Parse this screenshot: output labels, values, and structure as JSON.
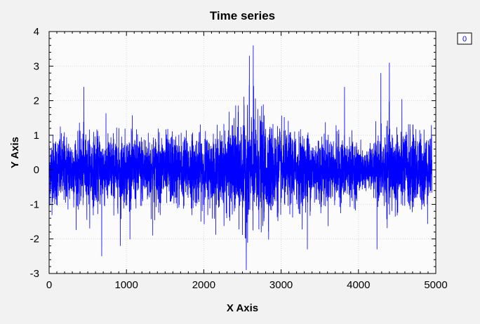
{
  "chart_data": {
    "type": "line",
    "title": "Time series",
    "xlabel": "X Axis",
    "ylabel": "Y Axis",
    "xlim": [
      0,
      5000
    ],
    "ylim": [
      -3,
      4
    ],
    "x_ticks": [
      0,
      1000,
      2000,
      3000,
      4000,
      5000
    ],
    "y_ticks": [
      -3,
      -2,
      -1,
      0,
      1,
      2,
      3,
      4
    ],
    "grid": true,
    "legend": {
      "placement": "top-right",
      "entries": [
        "0"
      ]
    },
    "colors": {
      "series": "#0000ff",
      "background": "#f2f2f2",
      "plot_area": "#fbfbfb",
      "grid": "#d8d8d8"
    },
    "series": [
      {
        "name": "0",
        "x_start": 0,
        "x_end": 4950,
        "n_points": 4950,
        "mean": 0,
        "noise_envelope": [
          {
            "x": 0,
            "sigma": 0.5
          },
          {
            "x": 2200,
            "sigma": 0.5
          },
          {
            "x": 2600,
            "sigma": 0.85
          },
          {
            "x": 3000,
            "sigma": 0.55
          },
          {
            "x": 3900,
            "sigma": 0.45
          },
          {
            "x": 4100,
            "sigma": 0.25
          },
          {
            "x": 4400,
            "sigma": 0.6
          },
          {
            "x": 4950,
            "sigma": 0.5
          }
        ],
        "notable_points": [
          {
            "x": 2640,
            "y": 3.6
          },
          {
            "x": 2590,
            "y": 3.3
          },
          {
            "x": 2550,
            "y": -2.9
          },
          {
            "x": 4400,
            "y": 3.1
          },
          {
            "x": 4290,
            "y": 2.8
          },
          {
            "x": 450,
            "y": 2.4
          },
          {
            "x": 680,
            "y": -2.5
          },
          {
            "x": 920,
            "y": -2.2
          },
          {
            "x": 1340,
            "y": -1.9
          },
          {
            "x": 3340,
            "y": -2.3
          },
          {
            "x": 3820,
            "y": 2.4
          },
          {
            "x": 4240,
            "y": -2.3
          }
        ]
      }
    ]
  }
}
